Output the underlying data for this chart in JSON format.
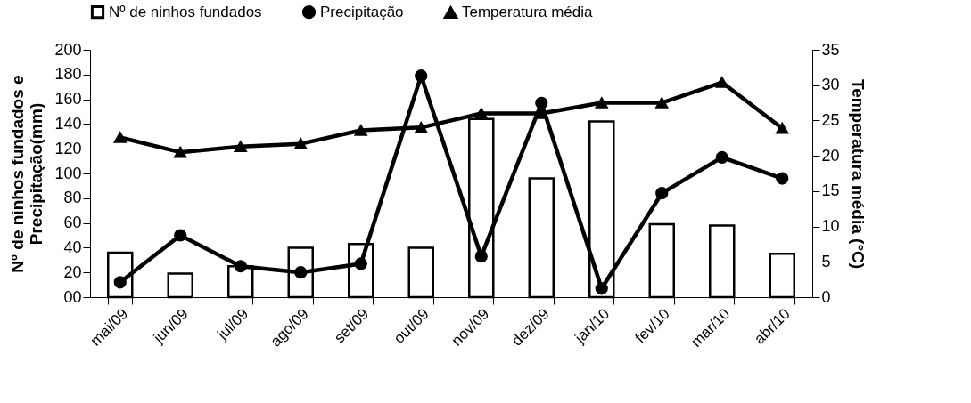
{
  "chart_data": {
    "type": "bar",
    "categories": [
      "mai/09",
      "jun/09",
      "jul/09",
      "ago/09",
      "set/09",
      "out/09",
      "nov/09",
      "dez/09",
      "jan/10",
      "fev/10",
      "mar/10",
      "abr/10"
    ],
    "series": [
      {
        "name": "Nº de ninhos fundados",
        "type": "bar",
        "color": "#ffffff",
        "values": [
          36,
          19,
          25,
          40,
          43,
          40,
          144,
          96,
          142,
          59,
          58,
          35
        ]
      },
      {
        "name": "Precipitação",
        "type": "line",
        "marker": "circle",
        "color": "#000000",
        "values": [
          12,
          50,
          25,
          20,
          27,
          179,
          33,
          157,
          7,
          84,
          113,
          96
        ]
      },
      {
        "name": "Temperatura média",
        "type": "line",
        "marker": "triangle",
        "axis": "y2",
        "color": "#000000",
        "values": [
          22.6,
          20.5,
          21.3,
          21.7,
          23.6,
          24.0,
          26.0,
          26.0,
          27.5,
          27.5,
          30.4,
          23.9
        ]
      }
    ],
    "ylabel": "Nº de ninhos fundados e\nPrecipitação(mm)",
    "y2label": "Temperatura média (°C)",
    "ylim": [
      0,
      200
    ],
    "yticks": [
      {
        "value": 0,
        "label": "00"
      },
      20,
      40,
      60,
      80,
      100,
      120,
      140,
      160,
      180,
      200
    ],
    "y2lim": [
      0,
      35
    ],
    "y2ticks": [
      0,
      5,
      10,
      15,
      20,
      25,
      30,
      35
    ],
    "legend": "top",
    "grid": false
  }
}
